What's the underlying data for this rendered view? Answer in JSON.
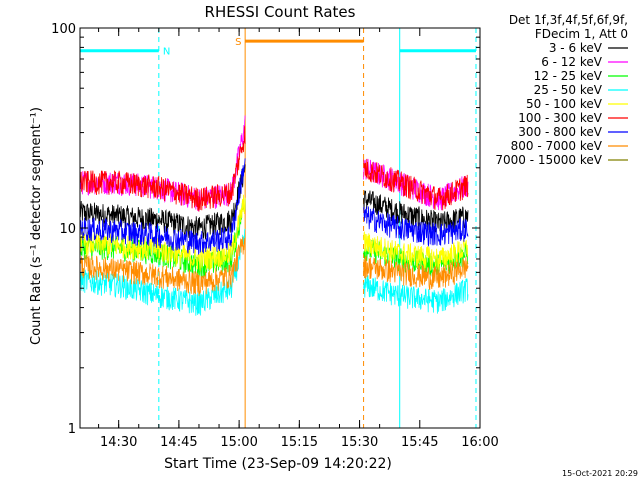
{
  "chart_data": {
    "type": "line",
    "title": "RHESSI Count Rates",
    "xlabel": "Start Time (23-Sep-09 14:20:22)",
    "ylabel": "Count Rate (s⁻¹ detector segment⁻¹)",
    "y_scale": "log",
    "ylim": [
      1,
      100
    ],
    "xlim": [
      "14:20:22",
      "16:00:00"
    ],
    "x_ticks": [
      "14:30",
      "14:45",
      "15:00",
      "15:15",
      "15:30",
      "15:45",
      "16:00"
    ],
    "y_ticks": [
      "1",
      "10",
      "100"
    ],
    "legend_title": [
      "Det 1f,3f,4f,5f,6f,9f,",
      "FDecim 1, Att 0"
    ],
    "legend_position": "top-right, outside plot",
    "series": [
      {
        "name": "3 - 6 keV",
        "color": "#000000",
        "x": [
          "14:20:22",
          "14:30",
          "14:40",
          "14:50",
          "14:58",
          "15:01:30",
          "15:31",
          "15:40",
          "15:50",
          "15:57"
        ],
        "values": [
          12,
          11.5,
          11,
          10,
          11,
          20,
          14,
          12,
          10.5,
          11.5
        ]
      },
      {
        "name": "6 - 12 keV",
        "color": "#ff00ff",
        "x": [
          "14:20:22",
          "14:30",
          "14:40",
          "14:50",
          "14:58",
          "15:01:30",
          "15:31",
          "15:40",
          "15:50",
          "15:57"
        ],
        "values": [
          17,
          17,
          16,
          14,
          15,
          33,
          20,
          17,
          14,
          16.5
        ]
      },
      {
        "name": "12 - 25 keV",
        "color": "#00ff00",
        "x": [
          "14:20:22",
          "14:30",
          "14:40",
          "14:50",
          "14:58",
          "15:01:30",
          "15:31",
          "15:40",
          "15:50",
          "15:57"
        ],
        "values": [
          8,
          8,
          7.5,
          6.5,
          7,
          14,
          8,
          7,
          6.5,
          7.5
        ]
      },
      {
        "name": "25 - 50 keV",
        "color": "#00ffff",
        "x": [
          "14:20:22",
          "14:30",
          "14:40",
          "14:50",
          "14:58",
          "15:01:30",
          "15:31",
          "15:40",
          "15:50",
          "15:57"
        ],
        "values": [
          5.5,
          5.2,
          4.6,
          4.2,
          5,
          9,
          5.2,
          4.6,
          4.3,
          5
        ]
      },
      {
        "name": "50 - 100 keV",
        "color": "#ffff00",
        "x": [
          "14:20:22",
          "14:30",
          "14:40",
          "14:50",
          "14:58",
          "15:01:30",
          "15:31",
          "15:40",
          "15:50",
          "15:57"
        ],
        "values": [
          8.5,
          8.2,
          7.8,
          7,
          7.5,
          14,
          8.5,
          7.5,
          7,
          8
        ]
      },
      {
        "name": "100 - 300 keV",
        "color": "#ff0000",
        "x": [
          "14:20:22",
          "14:30",
          "14:40",
          "14:50",
          "14:58",
          "15:01:30",
          "15:31",
          "15:40",
          "15:50",
          "15:57"
        ],
        "values": [
          17,
          17,
          16,
          14,
          15,
          30,
          20,
          17,
          14,
          16.5
        ]
      },
      {
        "name": "300 - 800 keV",
        "color": "#0000ff",
        "x": [
          "14:20:22",
          "14:30",
          "14:40",
          "14:50",
          "14:58",
          "15:01:30",
          "15:31",
          "15:40",
          "15:50",
          "15:57"
        ],
        "values": [
          10,
          9.7,
          9.2,
          8.5,
          9,
          22,
          11.5,
          10,
          9.3,
          10
        ]
      },
      {
        "name": "800 - 7000 keV",
        "color": "#ff8c00",
        "x": [
          "14:20:22",
          "14:30",
          "14:40",
          "14:50",
          "14:58",
          "15:01:30",
          "15:31",
          "15:40",
          "15:50",
          "15:57"
        ],
        "values": [
          6.5,
          6.2,
          5.8,
          5.3,
          5.8,
          9,
          6.5,
          6,
          5.6,
          6.5
        ]
      },
      {
        "name": "7000 - 15000 keV",
        "color": "#808000",
        "x": [],
        "values": []
      }
    ],
    "annotations": [
      {
        "label": "N",
        "color": "#00ffff",
        "x_start": "14:20:22",
        "x_end": "14:40",
        "level": 77
      },
      {
        "label": "S",
        "color": "#ff8c00",
        "x_start": "15:01:30",
        "x_end": "15:31",
        "level": 86
      },
      {
        "label": "",
        "color": "#00ffff",
        "x_start": "15:40",
        "x_end": "15:59",
        "level": 77
      }
    ],
    "timestamp": "15-Oct-2021 20:29"
  }
}
